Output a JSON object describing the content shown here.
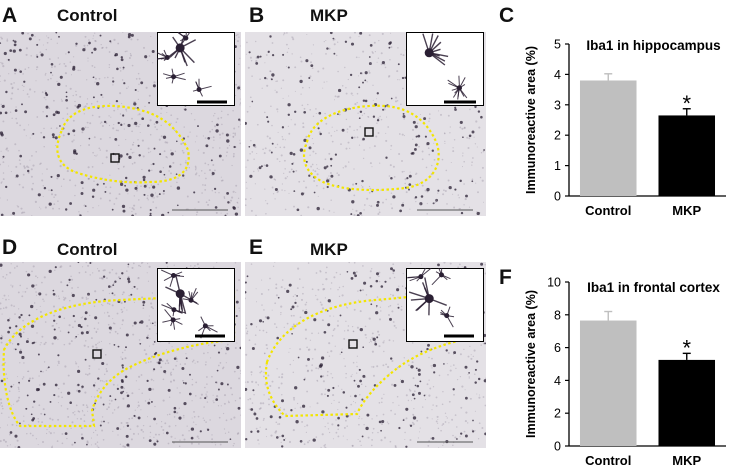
{
  "figure": {
    "panels": [
      {
        "letter": "A",
        "title": "Control"
      },
      {
        "letter": "B",
        "title": "MKP"
      },
      {
        "letter": "C",
        "title": ""
      },
      {
        "letter": "D",
        "title": "Control"
      },
      {
        "letter": "E",
        "title": "MKP"
      },
      {
        "letter": "F",
        "title": ""
      }
    ]
  },
  "colors": {
    "tissue": "#dcd8df",
    "region_outline": "#f2e500",
    "stain": "#2a1f33",
    "control_bar": "#bfbfbf",
    "mkp_bar": "#000000"
  },
  "chart_data": [
    {
      "type": "bar",
      "title": "Iba1 in hippocampus",
      "categories": [
        "Control",
        "MKP"
      ],
      "values": [
        3.8,
        2.65
      ],
      "errors": [
        0.22,
        0.22
      ],
      "significance": [
        "",
        "*"
      ],
      "ylabel": "Immunoreactive area (%)",
      "xlabel": "",
      "ylim": [
        0,
        5
      ],
      "yticks": [
        "0",
        "1",
        "2",
        "3",
        "4",
        "5"
      ],
      "grid": false
    },
    {
      "type": "bar",
      "title": "Iba1 in frontal cortex",
      "categories": [
        "Control",
        "MKP"
      ],
      "values": [
        7.65,
        5.25
      ],
      "errors": [
        0.55,
        0.4
      ],
      "significance": [
        "",
        "*"
      ],
      "ylabel": "Immunoreactive area (%)",
      "xlabel": "",
      "ylim": [
        0,
        10
      ],
      "yticks": [
        "0",
        "2",
        "4",
        "6",
        "8",
        "10"
      ],
      "grid": false
    }
  ]
}
